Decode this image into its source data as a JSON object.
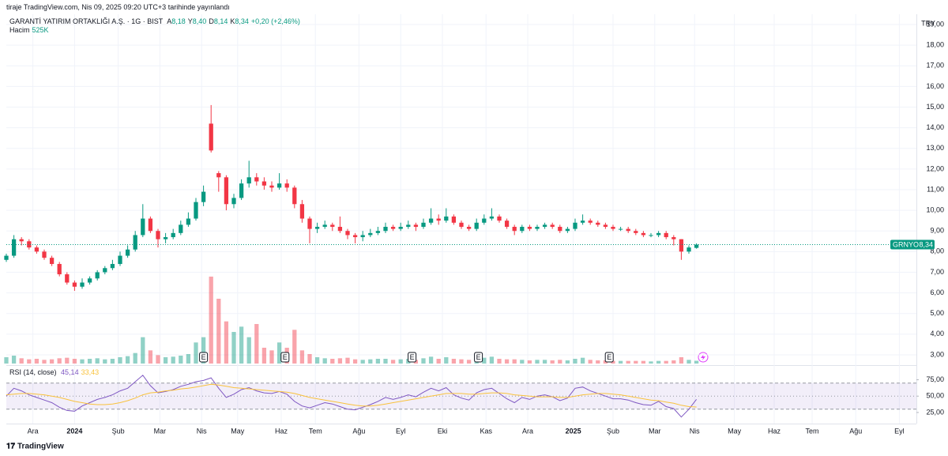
{
  "header": "tiraje TradingView.com, Nis 09, 2025 09:20 UTC+3 tarihinde yayınlandı",
  "footer": "TradingView",
  "chart_data": [
    {
      "type": "candlestick",
      "title": "GARANTİ YATIRIM ORTAKLIĞI A.Ş. · 1G · BIST",
      "ohlc_legend": [
        {
          "key": "A",
          "value": 8.18,
          "label": "8,18"
        },
        {
          "key": "Y",
          "value": 8.4,
          "label": "8,40"
        },
        {
          "key": "D",
          "value": 8.14,
          "label": "8,14"
        },
        {
          "key": "K",
          "value": 8.34,
          "label": "8,34"
        }
      ],
      "change": {
        "value": 0.2,
        "label": "+0,20 (+2,46%)"
      },
      "volume_title": "Hacim",
      "volume_last": {
        "value": 525000,
        "label": "525K"
      },
      "y_unit": "TRY",
      "up_color": "#089981",
      "down_color": "#f23645",
      "xlim": [
        0,
        480
      ],
      "xticks": [
        {
          "value": 14,
          "label": "Ara"
        },
        {
          "value": 36,
          "label": "2024"
        },
        {
          "value": 59,
          "label": "Şub"
        },
        {
          "value": 81,
          "label": "Mar"
        },
        {
          "value": 103,
          "label": "Nis"
        },
        {
          "value": 122,
          "label": "May"
        },
        {
          "value": 145,
          "label": "Haz"
        },
        {
          "value": 163,
          "label": "Tem"
        },
        {
          "value": 186,
          "label": "Ağu"
        },
        {
          "value": 208,
          "label": "Eyl"
        },
        {
          "value": 230,
          "label": "Eki"
        },
        {
          "value": 253,
          "label": "Kas"
        },
        {
          "value": 275,
          "label": "Ara"
        },
        {
          "value": 299,
          "label": "2025"
        },
        {
          "value": 320,
          "label": "Şub"
        },
        {
          "value": 342,
          "label": "Mar"
        },
        {
          "value": 363,
          "label": "Nis"
        },
        {
          "value": 384,
          "label": "May"
        },
        {
          "value": 405,
          "label": "Haz"
        },
        {
          "value": 425,
          "label": "Tem"
        },
        {
          "value": 448,
          "label": "Ağu"
        },
        {
          "value": 471,
          "label": "Eyl"
        }
      ],
      "ylim": [
        2.5,
        19.5
      ],
      "yticks": [
        {
          "value": 3,
          "label": "3,00"
        },
        {
          "value": 4,
          "label": "4,00"
        },
        {
          "value": 5,
          "label": "5,00"
        },
        {
          "value": 6,
          "label": "6,00"
        },
        {
          "value": 7,
          "label": "7,00"
        },
        {
          "value": 8,
          "label": "8,00"
        },
        {
          "value": 9,
          "label": "9,00"
        },
        {
          "value": 10,
          "label": "10,00"
        },
        {
          "value": 11,
          "label": "11,00"
        },
        {
          "value": 12,
          "label": "12,00"
        },
        {
          "value": 13,
          "label": "13,00"
        },
        {
          "value": 14,
          "label": "14,00"
        },
        {
          "value": 15,
          "label": "15,00"
        },
        {
          "value": 16,
          "label": "16,00"
        },
        {
          "value": 17,
          "label": "17,00"
        },
        {
          "value": 18,
          "label": "18,00"
        },
        {
          "value": 19,
          "label": "19,00"
        }
      ],
      "grid": true,
      "x": [
        0,
        4,
        8,
        12,
        16,
        20,
        24,
        28,
        32,
        36,
        40,
        44,
        48,
        52,
        56,
        60,
        64,
        68,
        72,
        76,
        80,
        84,
        88,
        92,
        96,
        100,
        104,
        108,
        112,
        116,
        120,
        124,
        128,
        132,
        136,
        140,
        144,
        148,
        152,
        156,
        160,
        164,
        168,
        172,
        176,
        180,
        184,
        188,
        192,
        196,
        200,
        204,
        208,
        212,
        216,
        220,
        224,
        228,
        232,
        236,
        240,
        244,
        248,
        252,
        256,
        260,
        264,
        268,
        272,
        276,
        280,
        284,
        288,
        292,
        296,
        300,
        304,
        308,
        312,
        316,
        320,
        324,
        328,
        332,
        336,
        340,
        344,
        348,
        352,
        356,
        360,
        364
      ],
      "open": [
        7.6,
        7.8,
        8.6,
        8.5,
        8.2,
        8.0,
        7.7,
        7.4,
        6.9,
        6.5,
        6.3,
        6.5,
        6.7,
        7.0,
        7.2,
        7.4,
        7.8,
        8.1,
        8.8,
        9.6,
        9.0,
        8.6,
        8.7,
        8.9,
        9.3,
        9.6,
        10.4,
        14.2,
        11.8,
        11.6,
        10.3,
        10.6,
        11.3,
        11.6,
        11.4,
        11.2,
        11.1,
        11.3,
        11.1,
        10.3,
        9.6,
        9.1,
        9.2,
        9.3,
        9.2,
        9.0,
        8.8,
        8.7,
        8.8,
        8.9,
        9.0,
        9.2,
        9.1,
        9.2,
        9.3,
        9.2,
        9.4,
        9.6,
        9.5,
        9.7,
        9.4,
        9.2,
        9.1,
        9.4,
        9.6,
        9.7,
        9.5,
        9.2,
        9.0,
        9.2,
        9.1,
        9.2,
        9.3,
        9.2,
        9.0,
        9.1,
        9.4,
        9.5,
        9.4,
        9.3,
        9.2,
        9.1,
        9.1,
        9.0,
        8.9,
        8.8,
        8.8,
        8.9,
        8.7,
        8.6,
        8.0,
        8.18
      ],
      "high": [
        7.9,
        8.8,
        8.7,
        8.6,
        8.3,
        8.1,
        7.8,
        7.5,
        7.0,
        6.6,
        6.7,
        6.8,
        7.1,
        7.3,
        7.6,
        8.0,
        8.3,
        9.0,
        10.3,
        9.7,
        9.1,
        8.9,
        9.1,
        9.5,
        9.9,
        10.6,
        11.2,
        15.1,
        11.9,
        11.7,
        10.8,
        11.5,
        12.4,
        11.8,
        11.6,
        11.4,
        11.8,
        11.5,
        11.2,
        10.5,
        9.7,
        9.4,
        9.5,
        9.4,
        9.7,
        9.1,
        8.9,
        9.0,
        9.1,
        9.2,
        9.4,
        9.3,
        9.4,
        9.5,
        9.4,
        9.6,
        10.1,
        9.8,
        10.1,
        9.8,
        9.5,
        9.3,
        9.6,
        9.8,
        10.1,
        9.8,
        9.6,
        9.3,
        9.3,
        9.3,
        9.3,
        9.4,
        9.4,
        9.3,
        9.2,
        9.6,
        9.8,
        9.6,
        9.5,
        9.4,
        9.3,
        9.2,
        9.2,
        9.1,
        9.0,
        8.9,
        9.0,
        9.0,
        8.8,
        8.6,
        8.3,
        8.4
      ],
      "low": [
        7.5,
        7.7,
        8.3,
        8.1,
        7.9,
        7.6,
        7.3,
        6.8,
        6.4,
        6.1,
        6.2,
        6.4,
        6.6,
        6.9,
        7.1,
        7.3,
        7.7,
        8.0,
        8.7,
        8.9,
        8.2,
        8.4,
        8.6,
        8.8,
        9.2,
        9.5,
        10.2,
        12.8,
        10.9,
        10.0,
        10.1,
        10.5,
        11.1,
        11.2,
        11.0,
        10.9,
        11.0,
        10.9,
        10.1,
        9.4,
        8.4,
        8.9,
        9.1,
        9.0,
        8.9,
        8.6,
        8.4,
        8.5,
        8.7,
        8.8,
        8.9,
        9.0,
        9.0,
        9.1,
        9.0,
        9.1,
        9.3,
        9.3,
        9.4,
        9.3,
        9.1,
        9.0,
        9.0,
        9.3,
        9.5,
        9.4,
        9.1,
        8.8,
        8.9,
        9.0,
        9.0,
        9.1,
        9.1,
        8.9,
        8.9,
        9.0,
        9.3,
        9.3,
        9.2,
        9.1,
        9.0,
        9.0,
        8.9,
        8.8,
        8.7,
        8.7,
        8.7,
        8.6,
        8.3,
        7.6,
        7.9,
        8.14
      ],
      "close": [
        7.8,
        8.6,
        8.5,
        8.2,
        8.0,
        7.7,
        7.4,
        6.9,
        6.5,
        6.3,
        6.5,
        6.7,
        7.0,
        7.2,
        7.4,
        7.8,
        8.1,
        8.8,
        9.6,
        9.0,
        8.6,
        8.7,
        8.9,
        9.3,
        9.6,
        10.4,
        10.9,
        12.9,
        11.6,
        10.3,
        10.6,
        11.3,
        11.6,
        11.4,
        11.2,
        11.1,
        11.3,
        11.1,
        10.3,
        9.6,
        9.1,
        9.2,
        9.3,
        9.2,
        9.0,
        8.8,
        8.7,
        8.8,
        8.9,
        9.0,
        9.2,
        9.1,
        9.2,
        9.3,
        9.2,
        9.4,
        9.6,
        9.5,
        9.7,
        9.4,
        9.2,
        9.1,
        9.4,
        9.6,
        9.7,
        9.5,
        9.2,
        9.0,
        9.2,
        9.1,
        9.2,
        9.3,
        9.2,
        9.0,
        9.1,
        9.4,
        9.5,
        9.4,
        9.3,
        9.2,
        9.1,
        9.1,
        9.0,
        8.9,
        8.8,
        8.8,
        8.9,
        8.7,
        8.6,
        8.0,
        8.2,
        8.34
      ],
      "volume_lim": [
        0,
        24
      ],
      "volume": [
        1.2,
        1.5,
        1.0,
        0.8,
        0.9,
        0.7,
        0.8,
        1.0,
        1.1,
        0.9,
        0.8,
        0.9,
        1.0,
        0.8,
        0.9,
        1.2,
        1.4,
        2.0,
        5.0,
        2.5,
        1.6,
        1.2,
        1.3,
        1.5,
        1.8,
        4.0,
        5.0,
        16.5,
        12.3,
        8.0,
        6.0,
        7.0,
        5.0,
        7.5,
        3.0,
        2.5,
        4.0,
        3.0,
        6.4,
        2.5,
        1.8,
        1.2,
        1.0,
        0.9,
        1.0,
        1.1,
        0.8,
        0.7,
        0.8,
        0.9,
        0.9,
        0.7,
        0.8,
        0.9,
        0.7,
        1.0,
        1.3,
        0.9,
        1.2,
        0.9,
        0.8,
        0.7,
        1.0,
        1.1,
        1.3,
        0.9,
        0.8,
        0.8,
        0.7,
        0.6,
        0.7,
        0.7,
        0.6,
        0.7,
        0.6,
        0.9,
        1.1,
        0.7,
        0.6,
        0.6,
        0.5,
        0.5,
        0.5,
        0.5,
        0.5,
        0.4,
        0.5,
        0.5,
        0.6,
        1.2,
        0.7,
        0.525
      ],
      "events": [
        {
          "x": 104,
          "label": "E"
        },
        {
          "x": 147,
          "label": "E"
        },
        {
          "x": 214,
          "label": "E"
        },
        {
          "x": 249,
          "label": "E"
        },
        {
          "x": 318,
          "label": "E"
        }
      ],
      "last": {
        "name": "GRNYO",
        "value": 8.34,
        "label": "8,34"
      }
    },
    {
      "type": "line",
      "title": "RSI (14, close)",
      "ylim": [
        8,
        95
      ],
      "yticks": [
        {
          "value": 25,
          "label": "25,00"
        },
        {
          "value": 50,
          "label": "50,00"
        },
        {
          "value": 75,
          "label": "75,00"
        }
      ],
      "bands": [
        30,
        50,
        70
      ],
      "band_color": "#7e57c2",
      "series": [
        {
          "color": "#7e57c2",
          "legend": {
            "value": 45.14,
            "label": "45,14"
          },
          "values": [
            50,
            62,
            58,
            52,
            48,
            44,
            40,
            33,
            28,
            27,
            35,
            40,
            45,
            48,
            52,
            58,
            62,
            72,
            82,
            66,
            55,
            57,
            60,
            65,
            68,
            72,
            74,
            78,
            62,
            48,
            53,
            60,
            63,
            58,
            55,
            54,
            57,
            53,
            42,
            35,
            32,
            36,
            40,
            38,
            34,
            30,
            29,
            33,
            37,
            42,
            48,
            45,
            48,
            52,
            49,
            56,
            62,
            58,
            63,
            52,
            47,
            44,
            55,
            60,
            62,
            54,
            46,
            40,
            48,
            45,
            50,
            52,
            49,
            43,
            47,
            62,
            64,
            58,
            54,
            50,
            46,
            46,
            44,
            40,
            37,
            36,
            42,
            34,
            31,
            18,
            30,
            45.14
          ]
        },
        {
          "color": "#f9c23c",
          "legend": {
            "value": 33.43,
            "label": "33,43"
          },
          "values": [
            52,
            53,
            54,
            54,
            53,
            52,
            50,
            48,
            45,
            42,
            40,
            38,
            37,
            37,
            38,
            40,
            43,
            47,
            52,
            55,
            56,
            58,
            59,
            61,
            62,
            64,
            66,
            68,
            67,
            65,
            63,
            62,
            61,
            60,
            59,
            58,
            57,
            56,
            54,
            51,
            48,
            46,
            44,
            42,
            40,
            38,
            36,
            35,
            35,
            36,
            38,
            40,
            42,
            44,
            46,
            48,
            50,
            52,
            54,
            54,
            54,
            53,
            53,
            54,
            55,
            55,
            54,
            52,
            51,
            50,
            49,
            49,
            49,
            48,
            48,
            50,
            52,
            53,
            54,
            54,
            53,
            52,
            50,
            48,
            46,
            44,
            43,
            41,
            39,
            36,
            34,
            33.43
          ]
        }
      ]
    }
  ]
}
